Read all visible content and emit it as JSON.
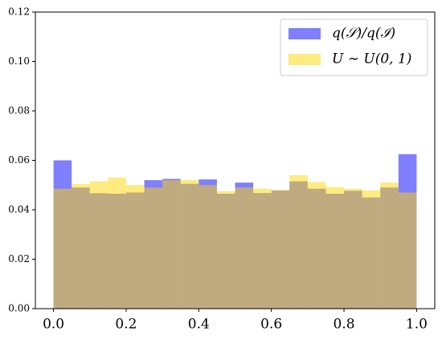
{
  "chart_data": {
    "type": "histogram",
    "bins": [
      0,
      0.05,
      0.1,
      0.15,
      0.2,
      0.25,
      0.3,
      0.35,
      0.4,
      0.45,
      0.5,
      0.55,
      0.6,
      0.65,
      0.7,
      0.75,
      0.8,
      0.85,
      0.9,
      0.95,
      1.0
    ],
    "series": [
      {
        "name": "q(𝒮)/q(ℐ)",
        "color": "#0000ff",
        "values": [
          0.06,
          0.049,
          0.0467,
          0.0465,
          0.047,
          0.052,
          0.0525,
          0.0505,
          0.0523,
          0.0465,
          0.051,
          0.0468,
          0.0478,
          0.0515,
          0.0485,
          0.0465,
          0.0477,
          0.045,
          0.049,
          0.0625
        ]
      },
      {
        "name": "U ∼ U(0, 1)",
        "color": "#ffd700",
        "values": [
          0.0485,
          0.0504,
          0.0515,
          0.053,
          0.05,
          0.049,
          0.052,
          0.052,
          0.05,
          0.0475,
          0.049,
          0.0485,
          0.048,
          0.054,
          0.0512,
          0.0492,
          0.0485,
          0.0478,
          0.051,
          0.047
        ]
      }
    ],
    "alpha": 0.5,
    "xlim": [
      -0.05,
      1.05
    ],
    "ylim": [
      0,
      0.12
    ],
    "xticks": [
      {
        "value": 0,
        "label": "0.0"
      },
      0.2,
      0.4,
      0.6,
      0.8,
      {
        "value": 1,
        "label": "1.0"
      }
    ],
    "yticks": [
      {
        "value": 0,
        "label": "0.00"
      },
      {
        "value": 0.02,
        "label": "0.02"
      },
      {
        "value": 0.04,
        "label": "0.04"
      },
      {
        "value": 0.06,
        "label": "0.06"
      },
      {
        "value": 0.08,
        "label": "0.08"
      },
      {
        "value": 0.1,
        "label": "0.10"
      },
      {
        "value": 0.12,
        "label": "0.12"
      }
    ],
    "legend": "upper right"
  }
}
